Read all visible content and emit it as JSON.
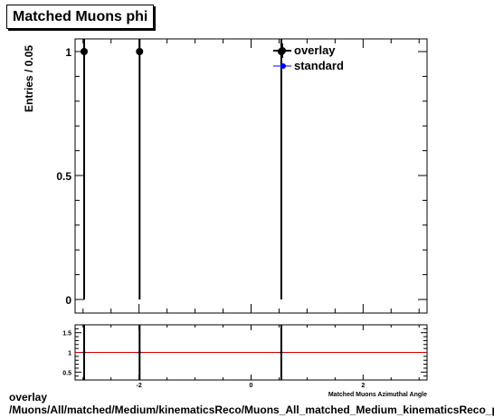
{
  "title": "Matched Muons phi",
  "footer": {
    "line1": "overlay",
    "line2": "/Muons/All/matched/Medium/kinematicsReco/Muons_All_matched_Medium_kinematicsReco_phi"
  },
  "chart_data": [
    {
      "type": "line",
      "ylabel": "Entries / 0.05",
      "xlim": [
        -3.1416,
        3.1416
      ],
      "ylim": [
        0,
        1.05
      ],
      "yticks": [
        0,
        0.5,
        1
      ],
      "ytick_labels": [
        "0",
        "0.5",
        "1"
      ],
      "bin_width": 0.05,
      "x_points": [
        -2.98,
        -1.99,
        0.54
      ],
      "series": [
        {
          "name": "overlay",
          "values": [
            1,
            1,
            1
          ],
          "color": "#000000"
        },
        {
          "name": "standard",
          "values": [
            1,
            1,
            1
          ],
          "color": "#0000ff"
        }
      ],
      "legend": "top-right"
    },
    {
      "type": "line",
      "xlabel": "Matched Muons Azimuthal Angle",
      "xlim": [
        -3.1416,
        3.1416
      ],
      "ylim": [
        0.3,
        1.7
      ],
      "xticks": [
        -2,
        0,
        2
      ],
      "xtick_labels": [
        "-2",
        "0",
        "2"
      ],
      "yticks": [
        0.5,
        1,
        1.5
      ],
      "ytick_labels": [
        "0.5",
        "1",
        "1.5"
      ],
      "x_points": [
        -2.98,
        -1.99,
        0.54
      ],
      "ratio_values": [
        1,
        1,
        1
      ],
      "reference_line": 1,
      "reference_color": "#cc0000"
    }
  ]
}
